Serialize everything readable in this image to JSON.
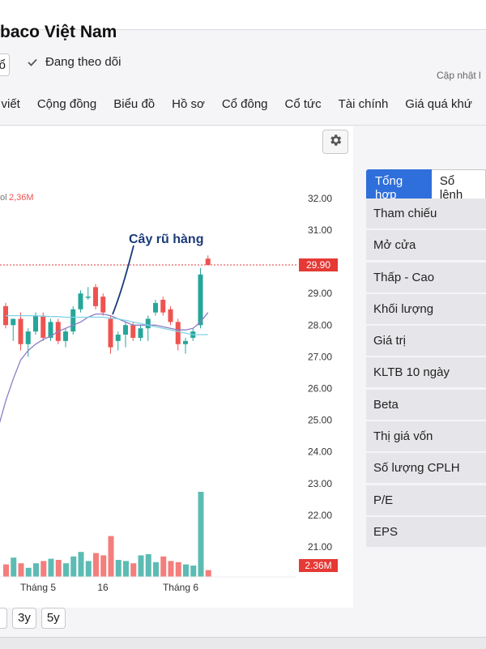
{
  "header": {
    "title": "baco Việt Nam",
    "follow_button_label": "ổ",
    "watching_label": "Đang theo dõi",
    "updated_label": "Cập nhật l"
  },
  "tabs": [
    "i viết",
    "Cộng đồng",
    "Biểu đồ",
    "Hồ sơ",
    "Cổ đông",
    "Cổ tức",
    "Tài chính",
    "Giá quá khứ"
  ],
  "chart": {
    "vol_label": "ol",
    "vol_value": "2,36M",
    "current_price_label": "29.90",
    "current_vol_label": "2.36M",
    "annotation": "Cây rũ hàng",
    "y_ticks": [
      "32.00",
      "31.00",
      "29.00",
      "28.00",
      "27.00",
      "26.00",
      "25.00",
      "24.00",
      "23.00",
      "22.00",
      "21.00"
    ],
    "x_ticks": [
      "Tháng 5",
      "16",
      "Tháng 6"
    ],
    "colors": {
      "up": "#26a69a",
      "down": "#ef5350",
      "price_line": "#e53935",
      "ma1": "#8e7cc3",
      "ma2": "#7fd3e6"
    }
  },
  "side_panel": {
    "tabs": {
      "active": "Tổng hợp",
      "inactive": "Sổ lệnh"
    },
    "rows": [
      "Tham chiếu",
      "Mở cửa",
      "Thấp - Cao",
      "Khối lượng",
      "Giá trị",
      "KLTB 10 ngày",
      "Beta",
      "Thị giá vốn",
      "Số lượng CPLH",
      "P/E",
      "EPS"
    ]
  },
  "range_buttons": [
    "3y",
    "5y"
  ],
  "chart_data": {
    "type": "candlestick",
    "price_axis": [
      21.0,
      32.0
    ],
    "reference_price": 29.9,
    "candles": [
      {
        "o": 28.6,
        "h": 28.7,
        "l": 27.9,
        "c": 28.0
      },
      {
        "o": 28.0,
        "h": 28.2,
        "l": 27.5,
        "c": 28.2
      },
      {
        "o": 28.2,
        "h": 28.4,
        "l": 27.2,
        "c": 27.4
      },
      {
        "o": 27.4,
        "h": 27.9,
        "l": 27.0,
        "c": 27.8
      },
      {
        "o": 27.8,
        "h": 28.4,
        "l": 27.7,
        "c": 28.3
      },
      {
        "o": 28.3,
        "h": 28.4,
        "l": 27.5,
        "c": 27.6
      },
      {
        "o": 27.6,
        "h": 28.2,
        "l": 27.5,
        "c": 28.1
      },
      {
        "o": 28.1,
        "h": 28.2,
        "l": 27.4,
        "c": 27.5
      },
      {
        "o": 27.5,
        "h": 27.9,
        "l": 27.3,
        "c": 27.8
      },
      {
        "o": 27.8,
        "h": 28.6,
        "l": 27.7,
        "c": 28.5
      },
      {
        "o": 28.5,
        "h": 29.1,
        "l": 28.4,
        "c": 29.0
      },
      {
        "o": 28.9,
        "h": 29.2,
        "l": 28.8,
        "c": 28.9
      },
      {
        "o": 29.2,
        "h": 29.3,
        "l": 28.5,
        "c": 28.6
      },
      {
        "o": 28.9,
        "h": 29.0,
        "l": 28.3,
        "c": 28.4
      },
      {
        "o": 28.2,
        "h": 28.3,
        "l": 27.1,
        "c": 27.3
      },
      {
        "o": 27.5,
        "h": 27.8,
        "l": 27.2,
        "c": 27.7
      },
      {
        "o": 27.7,
        "h": 28.1,
        "l": 27.3,
        "c": 28.0
      },
      {
        "o": 28.0,
        "h": 28.1,
        "l": 27.5,
        "c": 27.6
      },
      {
        "o": 27.6,
        "h": 28.0,
        "l": 27.5,
        "c": 27.9
      },
      {
        "o": 27.9,
        "h": 28.3,
        "l": 27.5,
        "c": 28.2
      },
      {
        "o": 28.4,
        "h": 28.8,
        "l": 28.3,
        "c": 28.7
      },
      {
        "o": 28.8,
        "h": 28.9,
        "l": 28.3,
        "c": 28.4
      },
      {
        "o": 28.5,
        "h": 28.6,
        "l": 28.0,
        "c": 28.1
      },
      {
        "o": 28.1,
        "h": 28.2,
        "l": 27.2,
        "c": 27.4
      },
      {
        "o": 27.4,
        "h": 27.6,
        "l": 27.1,
        "c": 27.5
      },
      {
        "o": 27.6,
        "h": 27.9,
        "l": 27.5,
        "c": 27.8
      },
      {
        "o": 28.0,
        "h": 29.8,
        "l": 27.9,
        "c": 29.6
      },
      {
        "o": 30.1,
        "h": 30.2,
        "l": 29.9,
        "c": 29.9
      }
    ],
    "volumes": [
      0.55,
      0.85,
      0.6,
      0.4,
      0.6,
      0.7,
      0.8,
      0.75,
      0.6,
      0.9,
      1.1,
      0.7,
      1.05,
      0.95,
      1.8,
      0.75,
      0.7,
      0.6,
      0.95,
      1.0,
      0.65,
      0.9,
      0.7,
      0.65,
      0.55,
      0.5,
      3.75,
      0.3
    ],
    "ma1": [
      25.6,
      26.3,
      26.9,
      27.2,
      27.4,
      27.55,
      27.65,
      27.8,
      27.9,
      28.0,
      28.1,
      28.25,
      28.35,
      28.35,
      28.3,
      28.2,
      28.1,
      28.0,
      28.0,
      28.0,
      28.0,
      27.95,
      27.9,
      27.85,
      27.85,
      27.9,
      28.1,
      28.4
    ],
    "ma2": [
      28.3,
      28.3,
      28.3,
      28.3,
      28.3,
      28.28,
      28.27,
      28.27,
      28.25,
      28.25,
      28.25,
      28.25,
      28.25,
      28.25,
      28.22,
      28.2,
      28.15,
      28.1,
      28.05,
      28.0,
      27.95,
      27.9,
      27.85,
      27.8,
      27.75,
      27.7,
      27.7,
      27.7
    ]
  }
}
